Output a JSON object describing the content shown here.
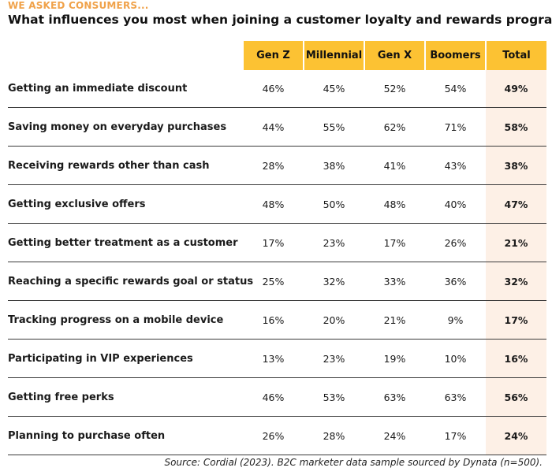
{
  "eyebrow": "WE ASKED CONSUMERS...",
  "title": "What influences you most when joining a customer loyalty and rewards program?",
  "source": "Source: Cordial (2023). B2C marketer data sample sourced by Dynata (n=500).",
  "colors": {
    "header_bg": "#fcc233",
    "total_bg": "#fdf0e6",
    "eyebrow": "#f0a24a"
  },
  "chart_data": {
    "type": "table",
    "title": "What influences you most when joining a customer loyalty and rewards program?",
    "columns": [
      "Gen Z",
      "Millennial",
      "Gen X",
      "Boomers",
      "Total"
    ],
    "rows": [
      {
        "label": "Getting an immediate discount",
        "values": [
          "46%",
          "45%",
          "52%",
          "54%",
          "49%"
        ]
      },
      {
        "label": "Saving money on everyday purchases",
        "values": [
          "44%",
          "55%",
          "62%",
          "71%",
          "58%"
        ]
      },
      {
        "label": "Receiving rewards other than cash",
        "values": [
          "28%",
          "38%",
          "41%",
          "43%",
          "38%"
        ]
      },
      {
        "label": "Getting exclusive offers",
        "values": [
          "48%",
          "50%",
          "48%",
          "40%",
          "47%"
        ]
      },
      {
        "label": "Getting better treatment as a customer",
        "values": [
          "17%",
          "23%",
          "17%",
          "26%",
          "21%"
        ]
      },
      {
        "label": "Reaching a specific rewards goal or status",
        "values": [
          "25%",
          "32%",
          "33%",
          "36%",
          "32%"
        ]
      },
      {
        "label": "Tracking progress on a mobile device",
        "values": [
          "16%",
          "20%",
          "21%",
          "9%",
          "17%"
        ]
      },
      {
        "label": "Participating in VIP experiences",
        "values": [
          "13%",
          "23%",
          "19%",
          "10%",
          "16%"
        ]
      },
      {
        "label": "Getting free perks",
        "values": [
          "46%",
          "53%",
          "63%",
          "63%",
          "56%"
        ]
      },
      {
        "label": "Planning to purchase often",
        "values": [
          "26%",
          "28%",
          "24%",
          "17%",
          "24%"
        ]
      }
    ]
  }
}
